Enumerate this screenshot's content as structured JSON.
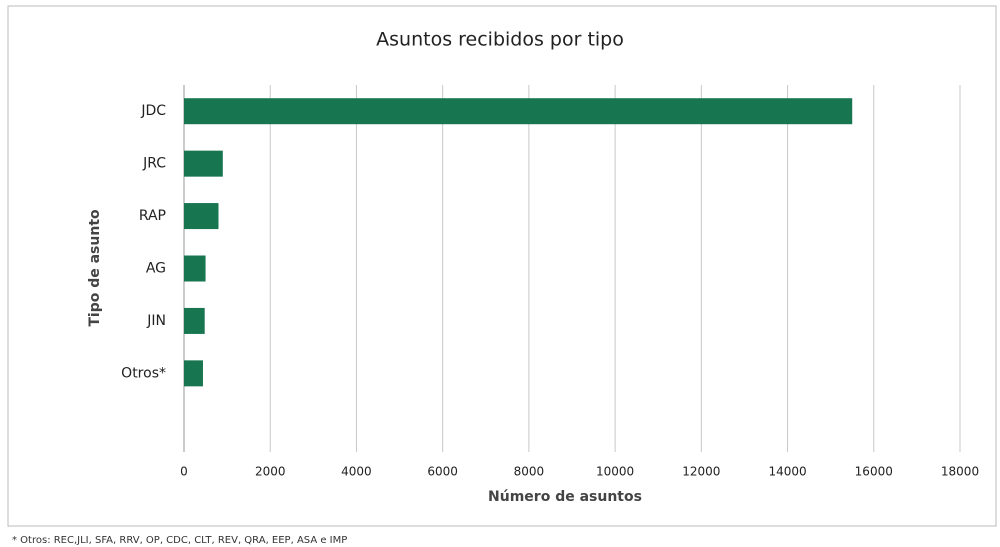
{
  "chart_data": {
    "type": "bar",
    "orientation": "horizontal",
    "title": "Asuntos recibidos por tipo",
    "xlabel": "Número de asuntos",
    "ylabel": "Tipo de asunto",
    "categories": [
      "JDC",
      "JRC",
      "RAP",
      "AG",
      "JIN",
      "Otros*"
    ],
    "values": [
      15500,
      900,
      800,
      500,
      480,
      440
    ],
    "color": "#177550",
    "xlim": [
      0,
      18000
    ],
    "xticks": [
      0,
      2000,
      4000,
      6000,
      8000,
      10000,
      12000,
      14000,
      16000,
      18000
    ],
    "grid": true,
    "footnote": "* Otros: REC,JLI, SFA, RRV, OP, CDC, CLT, REV, QRA, EEP, ASA e IMP"
  }
}
